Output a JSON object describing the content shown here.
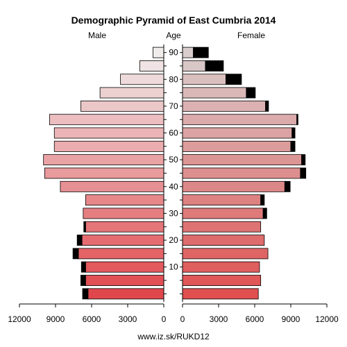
{
  "chart_data": {
    "type": "population_pyramid_bar",
    "title": "Demographic Pyramid of East Cumbria 2014",
    "left_header": "Male",
    "center_header": "Age",
    "right_header": "Female",
    "source_label": "www.iz.sk/RUKD12",
    "x_range": [
      0,
      12000
    ],
    "x_ticks": [
      0,
      3000,
      6000,
      9000,
      12000
    ],
    "x_tick_labels_male": [
      "0",
      "3000",
      "6000",
      "9000",
      "12000"
    ],
    "x_tick_labels_female": [
      "0",
      "3000",
      "6000",
      "9000",
      "12000"
    ],
    "age_groups": [
      "0-4",
      "5-9",
      "10-14",
      "15-19",
      "20-24",
      "25-29",
      "30-34",
      "35-39",
      "40-44",
      "45-49",
      "50-54",
      "55-59",
      "60-64",
      "65-69",
      "70-74",
      "75-79",
      "80-84",
      "85-89",
      "90+"
    ],
    "age_tick_labels": [
      "10",
      "20",
      "30",
      "40",
      "50",
      "60",
      "70",
      "80",
      "90"
    ],
    "male": {
      "base": [
        6300,
        6500,
        6500,
        7100,
        6800,
        6500,
        6700,
        6500,
        8600,
        9900,
        10000,
        9100,
        9100,
        9500,
        6900,
        5300,
        3600,
        2000,
        900
      ],
      "excess": [
        450,
        400,
        350,
        450,
        400,
        150,
        0,
        0,
        0,
        0,
        0,
        0,
        0,
        0,
        0,
        0,
        0,
        0,
        0
      ]
    },
    "female": {
      "base": [
        6300,
        6500,
        6400,
        7100,
        6800,
        6500,
        6700,
        6500,
        8500,
        9800,
        9900,
        9000,
        9100,
        9500,
        6900,
        5300,
        3600,
        1900,
        900
      ],
      "excess": [
        0,
        0,
        0,
        0,
        0,
        0,
        300,
        300,
        450,
        450,
        300,
        350,
        250,
        100,
        250,
        750,
        1300,
        1500,
        1250
      ]
    },
    "colors": {
      "male_young": "#e0474c",
      "male_old": "#f0ecec",
      "female_young": "#e05050",
      "female_old": "#d9cdcd",
      "excess": "#000000",
      "bar_outline": "#000000"
    }
  }
}
